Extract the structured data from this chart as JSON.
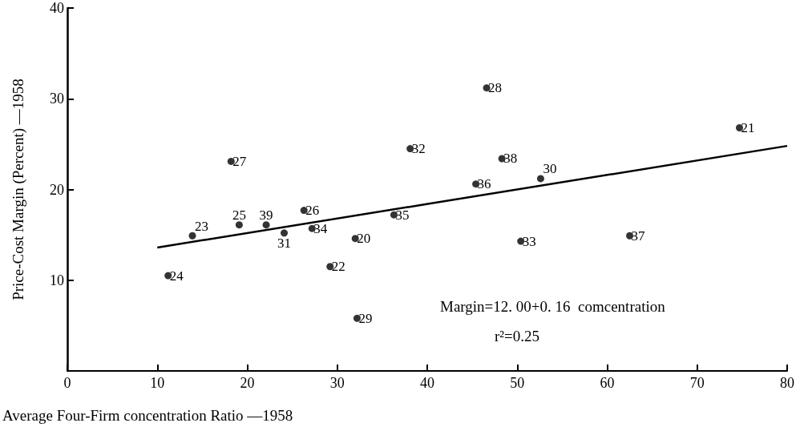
{
  "chart_data": {
    "type": "scatter",
    "xlabel": "Average Four-Firm concentration Ratio —1958",
    "ylabel": "Price-Cost Margin (Percent) —1958",
    "xlim": [
      0,
      80
    ],
    "xticks": [
      0,
      10,
      20,
      30,
      40,
      50,
      60,
      70,
      80
    ],
    "ylim": [
      0,
      40
    ],
    "yticks": [
      10,
      20,
      30,
      40
    ],
    "grid": false,
    "marker": "circle",
    "annotations": [
      {
        "text": "20",
        "x": 32.0,
        "y": 14.6
      },
      {
        "text": "21",
        "x": 74.7,
        "y": 26.8
      },
      {
        "text": "22",
        "x": 29.2,
        "y": 11.5
      },
      {
        "text": "23",
        "x": 13.9,
        "y": 14.9
      },
      {
        "text": "24",
        "x": 11.2,
        "y": 10.5
      },
      {
        "text": "25",
        "x": 19.1,
        "y": 16.1
      },
      {
        "text": "26",
        "x": 26.3,
        "y": 17.7
      },
      {
        "text": "27",
        "x": 18.2,
        "y": 23.1
      },
      {
        "text": "28",
        "x": 46.6,
        "y": 31.2
      },
      {
        "text": "29",
        "x": 32.2,
        "y": 5.8
      },
      {
        "text": "30",
        "x": 52.6,
        "y": 21.2
      },
      {
        "text": "31",
        "x": 24.1,
        "y": 15.2
      },
      {
        "text": "32",
        "x": 38.1,
        "y": 24.5
      },
      {
        "text": "33",
        "x": 50.4,
        "y": 14.3
      },
      {
        "text": "34",
        "x": 27.2,
        "y": 15.7
      },
      {
        "text": "35",
        "x": 36.3,
        "y": 17.2
      },
      {
        "text": "36",
        "x": 45.4,
        "y": 20.6
      },
      {
        "text": "37",
        "x": 62.5,
        "y": 14.9
      },
      {
        "text": "38",
        "x": 48.3,
        "y": 23.4
      },
      {
        "text": "39",
        "x": 22.1,
        "y": 16.1
      },
      "Margin=12. 00+0. 16  comcentration",
      "r²=0.25"
    ],
    "series": [
      {
        "color": "#000000",
        "x": [
          32.0,
          74.7,
          29.2,
          13.9,
          11.2,
          19.1,
          26.3,
          18.2,
          46.6,
          32.2,
          52.6,
          24.1,
          38.1,
          50.4,
          27.2,
          36.3,
          45.4,
          62.5,
          48.3,
          22.1
        ],
        "values": [
          14.6,
          26.8,
          11.5,
          14.9,
          10.5,
          16.1,
          17.7,
          23.1,
          31.2,
          5.8,
          21.2,
          15.2,
          24.5,
          14.3,
          15.7,
          17.2,
          20.6,
          14.9,
          23.4,
          16.1
        ]
      },
      {
        "type": "line",
        "color": "#000000",
        "marker": "none",
        "x": [
          10,
          80
        ],
        "values": [
          13.6,
          24.8
        ]
      }
    ]
  }
}
